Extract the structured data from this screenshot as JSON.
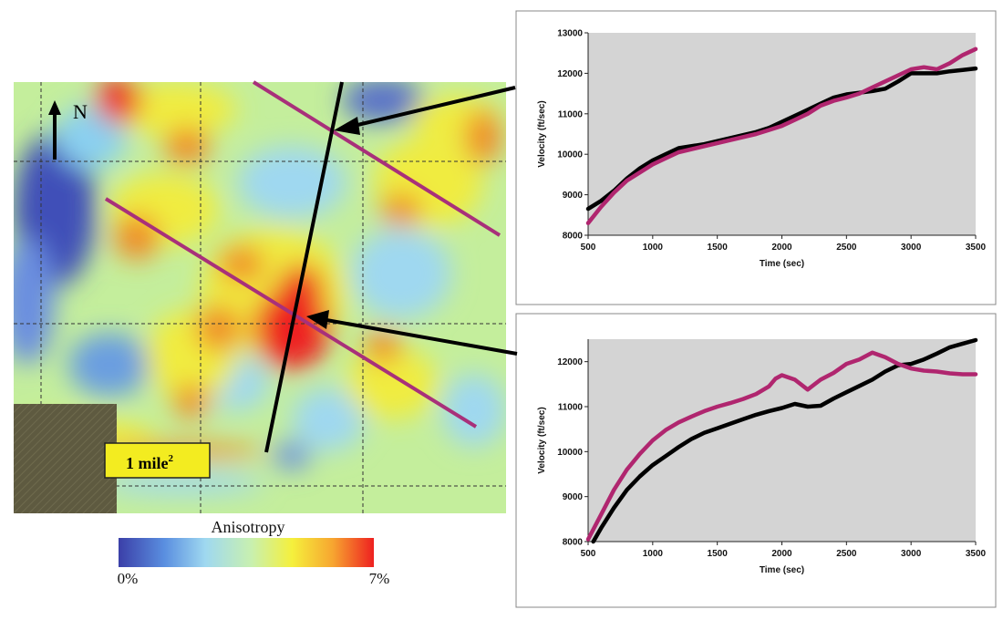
{
  "map": {
    "north_label": "N",
    "scale_label": "1 mile",
    "scale_superscript": "2",
    "colorbar_title": "Anisotropy",
    "colorbar_min": "0%",
    "colorbar_max": "7%",
    "colorbar_colors": [
      "#3b3fa8",
      "#5a8fe0",
      "#9fd8f0",
      "#c8f0b0",
      "#f5f03c",
      "#f7a530",
      "#ee2020"
    ]
  },
  "colors": {
    "observed": "#000000",
    "model": "#b0266f",
    "plot_bg": "#d4d4d4"
  },
  "chart_data": [
    {
      "type": "line",
      "title": "",
      "xlabel": "Time (sec)",
      "ylabel": "Velocity (ft/sec)",
      "xlim": [
        500,
        3500
      ],
      "ylim": [
        8000,
        13000
      ],
      "xticks": [
        500,
        1000,
        1500,
        2000,
        2500,
        3000,
        3500
      ],
      "yticks": [
        8000,
        9000,
        10000,
        11000,
        12000,
        13000
      ],
      "grid": false,
      "series": [
        {
          "color": "#000000",
          "x": [
            500,
            600,
            700,
            800,
            900,
            1000,
            1100,
            1200,
            1400,
            1600,
            1800,
            1900,
            2000,
            2100,
            2200,
            2300,
            2400,
            2500,
            2600,
            2700,
            2800,
            2900,
            3000,
            3100,
            3200,
            3300,
            3400,
            3500
          ],
          "y": [
            8650,
            8850,
            9100,
            9400,
            9650,
            9850,
            10000,
            10150,
            10250,
            10400,
            10550,
            10650,
            10800,
            10950,
            11100,
            11250,
            11400,
            11480,
            11520,
            11560,
            11620,
            11800,
            12000,
            12000,
            12000,
            12050,
            12080,
            12120
          ]
        },
        {
          "color": "#b0266f",
          "x": [
            500,
            600,
            700,
            800,
            900,
            1000,
            1100,
            1200,
            1400,
            1600,
            1800,
            1900,
            2000,
            2100,
            2200,
            2300,
            2400,
            2500,
            2600,
            2700,
            2800,
            2900,
            3000,
            3100,
            3200,
            3300,
            3400,
            3500
          ],
          "y": [
            8300,
            8700,
            9050,
            9350,
            9550,
            9750,
            9900,
            10050,
            10200,
            10350,
            10500,
            10600,
            10700,
            10850,
            11000,
            11200,
            11320,
            11400,
            11500,
            11650,
            11800,
            11950,
            12100,
            12150,
            12100,
            12250,
            12450,
            12600
          ]
        }
      ]
    },
    {
      "type": "line",
      "title": "",
      "xlabel": "Time (sec)",
      "ylabel": "Velocity (ft/sec)",
      "xlim": [
        500,
        3500
      ],
      "ylim": [
        8000,
        12500
      ],
      "xticks": [
        500,
        1000,
        1500,
        2000,
        2500,
        3000,
        3500
      ],
      "yticks": [
        8000,
        9000,
        10000,
        11000,
        12000
      ],
      "grid": false,
      "series": [
        {
          "color": "#000000",
          "x": [
            540,
            600,
            700,
            800,
            900,
            1000,
            1100,
            1200,
            1300,
            1400,
            1500,
            1600,
            1700,
            1800,
            1900,
            2000,
            2100,
            2200,
            2300,
            2400,
            2500,
            2600,
            2700,
            2800,
            2900,
            3000,
            3100,
            3200,
            3300,
            3400,
            3500
          ],
          "y": [
            8000,
            8300,
            8750,
            9150,
            9450,
            9700,
            9900,
            10100,
            10280,
            10420,
            10520,
            10620,
            10720,
            10820,
            10900,
            10970,
            11060,
            11000,
            11020,
            11180,
            11320,
            11460,
            11600,
            11780,
            11920,
            11950,
            12050,
            12180,
            12320,
            12400,
            12480
          ]
        },
        {
          "color": "#b0266f",
          "x": [
            500,
            600,
            700,
            800,
            900,
            1000,
            1100,
            1200,
            1300,
            1400,
            1500,
            1600,
            1700,
            1800,
            1900,
            1950,
            2000,
            2100,
            2200,
            2300,
            2400,
            2500,
            2600,
            2700,
            2800,
            2900,
            3000,
            3100,
            3200,
            3300,
            3400,
            3500
          ],
          "y": [
            8050,
            8600,
            9150,
            9600,
            9950,
            10250,
            10480,
            10650,
            10780,
            10900,
            11000,
            11080,
            11170,
            11280,
            11450,
            11620,
            11700,
            11600,
            11380,
            11600,
            11750,
            11950,
            12050,
            12200,
            12100,
            11950,
            11850,
            11800,
            11780,
            11740,
            11720,
            11720
          ]
        }
      ]
    }
  ]
}
